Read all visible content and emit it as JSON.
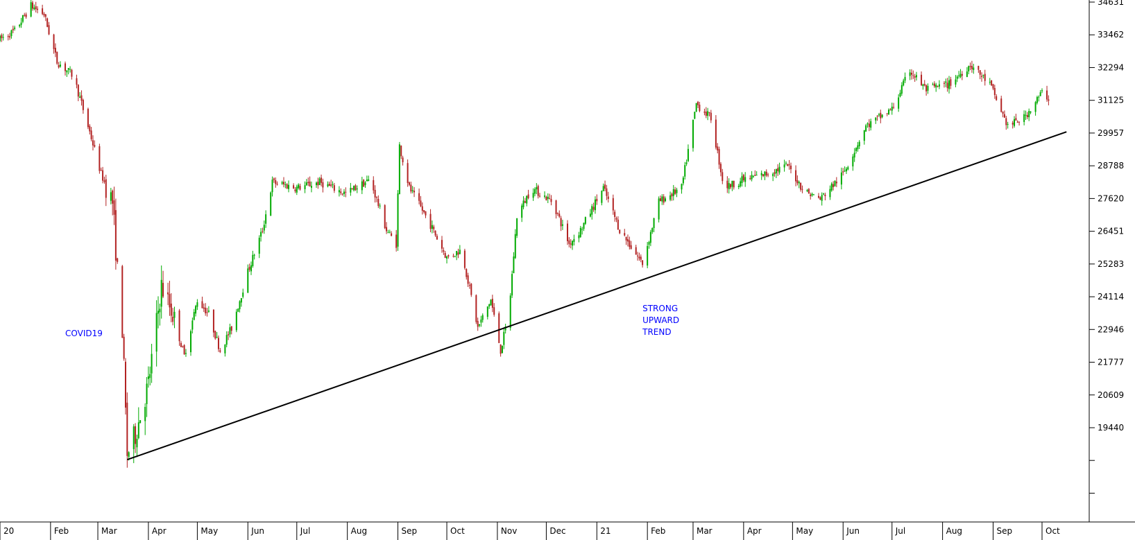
{
  "chart_data": {
    "type": "candlestick",
    "colors": {
      "up": "#00aa00",
      "down": "#b22222",
      "trendline": "#000000",
      "annotation": "#0000ff",
      "axis": "#000000"
    },
    "y_ticks": [
      34631,
      33462,
      32294,
      31125,
      29957,
      28788,
      27620,
      26451,
      25283,
      24114,
      22946,
      21777,
      20609,
      19440
    ],
    "y_unlabeled_ticks": [
      18272,
      17103
    ],
    "ylim": [
      16000,
      34700
    ],
    "x_ticks": [
      {
        "label": "20",
        "date": "2020-01-01"
      },
      {
        "label": "Feb",
        "date": "2020-02-01"
      },
      {
        "label": "Mar",
        "date": "2020-03-01"
      },
      {
        "label": "Apr",
        "date": "2020-04-01"
      },
      {
        "label": "May",
        "date": "2020-05-01"
      },
      {
        "label": "Jun",
        "date": "2020-06-01"
      },
      {
        "label": "Jul",
        "date": "2020-07-01"
      },
      {
        "label": "Aug",
        "date": "2020-08-01"
      },
      {
        "label": "Sep",
        "date": "2020-09-01"
      },
      {
        "label": "Oct",
        "date": "2020-10-01"
      },
      {
        "label": "Nov",
        "date": "2020-11-01"
      },
      {
        "label": "Dec",
        "date": "2020-12-01"
      },
      {
        "label": "21",
        "date": "2021-01-01"
      },
      {
        "label": "Feb",
        "date": "2021-02-01"
      },
      {
        "label": "Mar",
        "date": "2021-03-01"
      },
      {
        "label": "Apr",
        "date": "2021-04-01"
      },
      {
        "label": "May",
        "date": "2021-05-01"
      },
      {
        "label": "Jun",
        "date": "2021-06-01"
      },
      {
        "label": "Jul",
        "date": "2021-07-01"
      },
      {
        "label": "Aug",
        "date": "2021-08-01"
      },
      {
        "label": "Sep",
        "date": "2021-09-01"
      },
      {
        "label": "Oct",
        "date": "2021-10-01"
      }
    ],
    "price_path": [
      [
        "2020-01-01",
        33300
      ],
      [
        "2020-01-10",
        33600
      ],
      [
        "2020-01-20",
        34500
      ],
      [
        "2020-01-28",
        34200
      ],
      [
        "2020-02-05",
        32500
      ],
      [
        "2020-02-15",
        32000
      ],
      [
        "2020-02-25",
        30000
      ],
      [
        "2020-03-03",
        28500
      ],
      [
        "2020-03-10",
        27500
      ],
      [
        "2020-03-13",
        25000
      ],
      [
        "2020-03-16",
        23000
      ],
      [
        "2020-03-19",
        18500
      ],
      [
        "2020-03-24",
        19200
      ],
      [
        "2020-04-01",
        21000
      ],
      [
        "2020-04-09",
        24500
      ],
      [
        "2020-04-16",
        23500
      ],
      [
        "2020-04-23",
        22000
      ],
      [
        "2020-05-01",
        24000
      ],
      [
        "2020-05-08",
        23500
      ],
      [
        "2020-05-15",
        22200
      ],
      [
        "2020-05-22",
        23000
      ],
      [
        "2020-06-01",
        25000
      ],
      [
        "2020-06-10",
        26500
      ],
      [
        "2020-06-16",
        28200
      ],
      [
        "2020-07-01",
        28000
      ],
      [
        "2020-07-15",
        28200
      ],
      [
        "2020-07-31",
        27800
      ],
      [
        "2020-08-15",
        28300
      ],
      [
        "2020-08-25",
        26500
      ],
      [
        "2020-08-31",
        26000
      ],
      [
        "2020-09-02",
        29500
      ],
      [
        "2020-09-08",
        28000
      ],
      [
        "2020-09-20",
        26800
      ],
      [
        "2020-10-01",
        25500
      ],
      [
        "2020-10-10",
        25800
      ],
      [
        "2020-10-20",
        23000
      ],
      [
        "2020-10-28",
        24000
      ],
      [
        "2020-11-03",
        22200
      ],
      [
        "2020-11-08",
        23500
      ],
      [
        "2020-11-13",
        27000
      ],
      [
        "2020-11-22",
        28000
      ],
      [
        "2020-12-05",
        27500
      ],
      [
        "2020-12-15",
        26000
      ],
      [
        "2020-12-22",
        26500
      ],
      [
        "2021-01-05",
        28000
      ],
      [
        "2021-01-15",
        26500
      ],
      [
        "2021-01-29",
        25300
      ],
      [
        "2021-02-08",
        27500
      ],
      [
        "2021-02-22",
        28000
      ],
      [
        "2021-03-03",
        31000
      ],
      [
        "2021-03-12",
        30500
      ],
      [
        "2021-03-20",
        28000
      ],
      [
        "2021-04-01",
        28300
      ],
      [
        "2021-04-15",
        28500
      ],
      [
        "2021-04-28",
        28800
      ],
      [
        "2021-05-08",
        27900
      ],
      [
        "2021-05-18",
        27600
      ],
      [
        "2021-06-01",
        28500
      ],
      [
        "2021-06-15",
        30200
      ],
      [
        "2021-07-01",
        30800
      ],
      [
        "2021-07-12",
        32200
      ],
      [
        "2021-07-22",
        31500
      ],
      [
        "2021-08-05",
        31700
      ],
      [
        "2021-08-18",
        32400
      ],
      [
        "2021-08-30",
        31700
      ],
      [
        "2021-09-10",
        30200
      ],
      [
        "2021-09-20",
        30500
      ],
      [
        "2021-10-01",
        31400
      ],
      [
        "2021-10-05",
        31200
      ]
    ],
    "trendline": [
      {
        "date": "2020-03-19",
        "value": 18300
      },
      {
        "date": "2021-10-16",
        "value": 30000
      }
    ],
    "annotations": [
      {
        "lines": [
          "COVID19"
        ],
        "date": "2020-02-10",
        "value": 22700
      },
      {
        "lines": [
          "STRONG",
          "UPWARD",
          "TREND"
        ],
        "date": "2021-01-29",
        "value": 23600
      }
    ]
  }
}
